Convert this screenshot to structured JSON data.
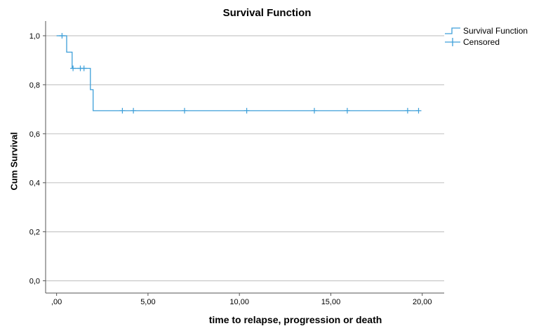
{
  "chart_data": {
    "type": "line",
    "title": "Survival Function",
    "xlabel": "time to relapse, progression or death",
    "ylabel": "Cum Survival",
    "xlim": [
      -0.6,
      21.2
    ],
    "ylim": [
      -0.05,
      1.06
    ],
    "x_ticks": [
      0,
      5,
      10,
      15,
      20
    ],
    "x_tick_labels": [
      ",00",
      "5,00",
      "10,00",
      "15,00",
      "20,00"
    ],
    "y_ticks": [
      0.0,
      0.2,
      0.4,
      0.6,
      0.8,
      1.0
    ],
    "y_tick_labels": [
      "0,0",
      "0,2",
      "0,4",
      "0,6",
      "0,8",
      "1,0"
    ],
    "grid": "horizontal",
    "legend_position": "top-right",
    "series": [
      {
        "name": "Survival Function",
        "color": "#3d9fd9",
        "step_points": [
          [
            0,
            1.0
          ],
          [
            0.55,
            1.0
          ],
          [
            0.55,
            0.933
          ],
          [
            0.85,
            0.933
          ],
          [
            0.85,
            0.867
          ],
          [
            1.85,
            0.867
          ],
          [
            1.85,
            0.78
          ],
          [
            2.0,
            0.78
          ],
          [
            2.0,
            0.694
          ],
          [
            19.8,
            0.694
          ]
        ]
      },
      {
        "name": "Censored",
        "color": "#3d9fd9",
        "points": [
          [
            0.3,
            1.0
          ],
          [
            0.9,
            0.867
          ],
          [
            1.3,
            0.867
          ],
          [
            1.5,
            0.867
          ],
          [
            3.6,
            0.694
          ],
          [
            4.2,
            0.694
          ],
          [
            7.0,
            0.694
          ],
          [
            10.4,
            0.694
          ],
          [
            14.1,
            0.694
          ],
          [
            15.9,
            0.694
          ],
          [
            19.2,
            0.694
          ],
          [
            19.8,
            0.694
          ]
        ]
      }
    ]
  }
}
